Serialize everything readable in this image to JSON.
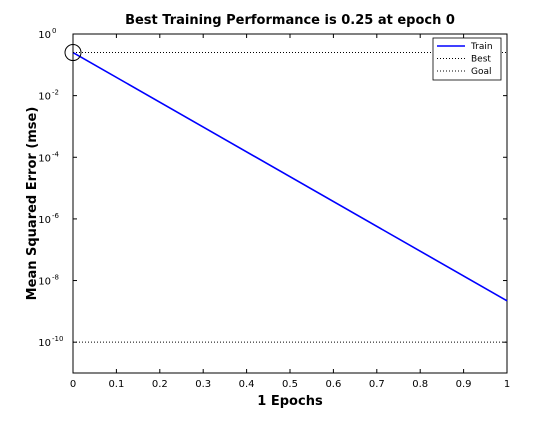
{
  "chart_data": {
    "type": "line",
    "title": "Best Training Performance is 0.25 at epoch 0",
    "xlabel": "1 Epochs",
    "ylabel": "Mean Squared Error  (mse)",
    "xlim": [
      0,
      1
    ],
    "ylim": [
      1e-11,
      1
    ],
    "yscale": "log",
    "x_ticks": [
      0,
      0.1,
      0.2,
      0.3,
      0.4,
      0.5,
      0.6,
      0.7,
      0.8,
      0.9,
      1
    ],
    "x_tick_labels": [
      "0",
      "0.1",
      "0.2",
      "0.3",
      "0.4",
      "0.5",
      "0.6",
      "0.7",
      "0.8",
      "0.9",
      "1"
    ],
    "y_ticks": [
      {
        "value": 1,
        "base": "10",
        "exp": "0"
      },
      {
        "value": 0.01,
        "base": "10",
        "exp": "-2"
      },
      {
        "value": 0.0001,
        "base": "10",
        "exp": "-4"
      },
      {
        "value": 1e-06,
        "base": "10",
        "exp": "-6"
      },
      {
        "value": 1e-08,
        "base": "10",
        "exp": "-8"
      },
      {
        "value": 1e-10,
        "base": "10",
        "exp": "-10"
      }
    ],
    "series": [
      {
        "name": "Train",
        "x": [
          0,
          1
        ],
        "y": [
          0.25,
          2.2e-09
        ],
        "color": "#0000ff",
        "style": "solid"
      },
      {
        "name": "Best",
        "x": [
          0,
          1
        ],
        "y": [
          0.25,
          0.25
        ],
        "color": "#000000",
        "style": "dotted"
      },
      {
        "name": "Goal",
        "x": [
          0,
          1
        ],
        "y": [
          1e-10,
          1e-10
        ],
        "color": "#000000",
        "style": "dotted"
      }
    ],
    "best_marker": {
      "x": 0,
      "y": 0.25
    },
    "legend_position": "top-right",
    "grid": false
  }
}
